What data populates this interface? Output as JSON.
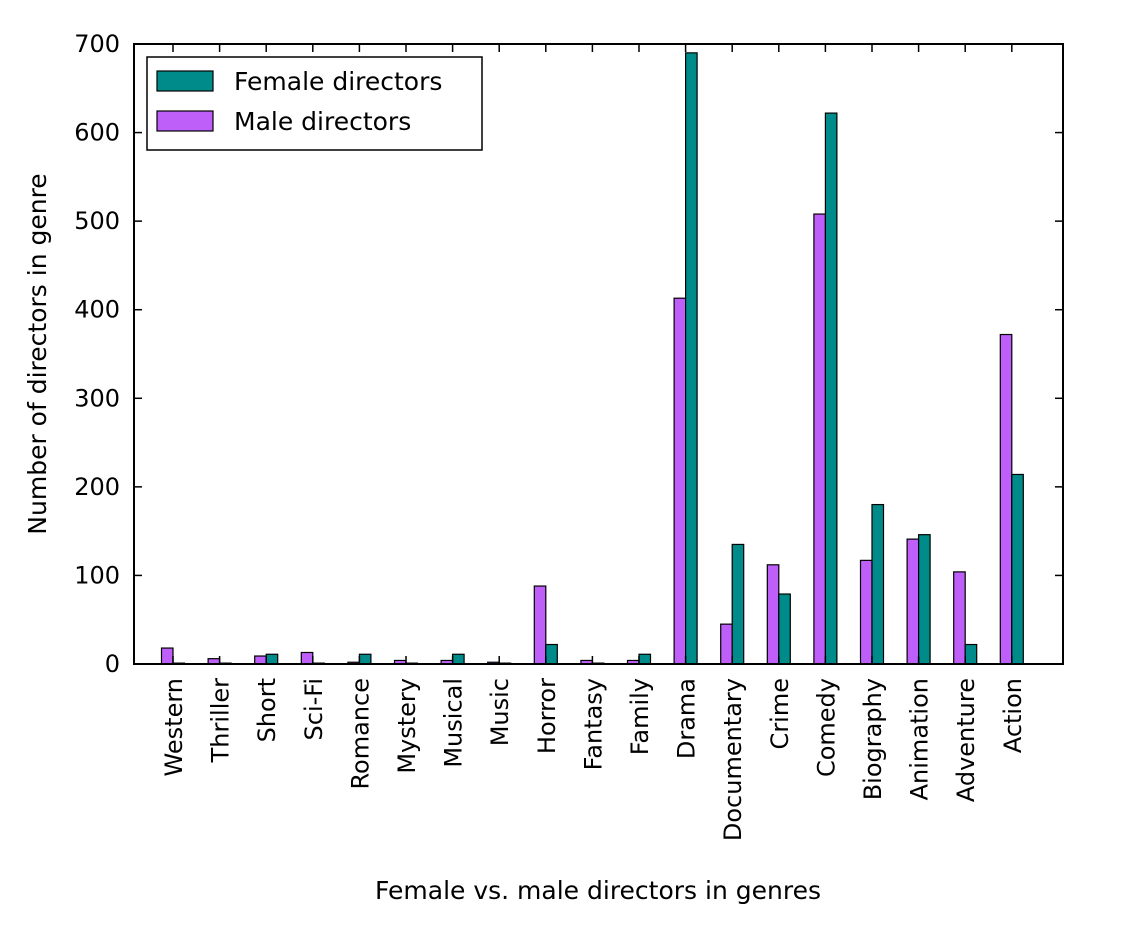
{
  "chart_data": {
    "type": "bar",
    "categories": [
      "Western",
      "Thriller",
      "Short",
      "Sci-Fi",
      "Romance",
      "Mystery",
      "Musical",
      "Music",
      "Horror",
      "Fantasy",
      "Family",
      "Drama",
      "Documentary",
      "Crime",
      "Comedy",
      "Biography",
      "Animation",
      "Adventure",
      "Action"
    ],
    "series": [
      {
        "name": "Male directors",
        "color": "#bf5ffa",
        "values": [
          18,
          6,
          9,
          13,
          2,
          4,
          4,
          2,
          88,
          4,
          4,
          413,
          45,
          112,
          508,
          117,
          141,
          104,
          372
        ]
      },
      {
        "name": "Female directors",
        "color": "#008b8b",
        "values": [
          1,
          1,
          11,
          1,
          11,
          1,
          11,
          1,
          22,
          1,
          11,
          690,
          135,
          79,
          622,
          180,
          146,
          22,
          214
        ]
      }
    ],
    "legend_order": [
      "Female directors",
      "Male directors"
    ],
    "legend_position": "top-left",
    "title": "",
    "xlabel": "Female vs. male directors in genres",
    "ylabel": "Number of directors in genre",
    "ylim": [
      0,
      700
    ],
    "yticks": [
      "0",
      "100",
      "200",
      "300",
      "400",
      "500",
      "600",
      "700"
    ],
    "grid": false
  }
}
